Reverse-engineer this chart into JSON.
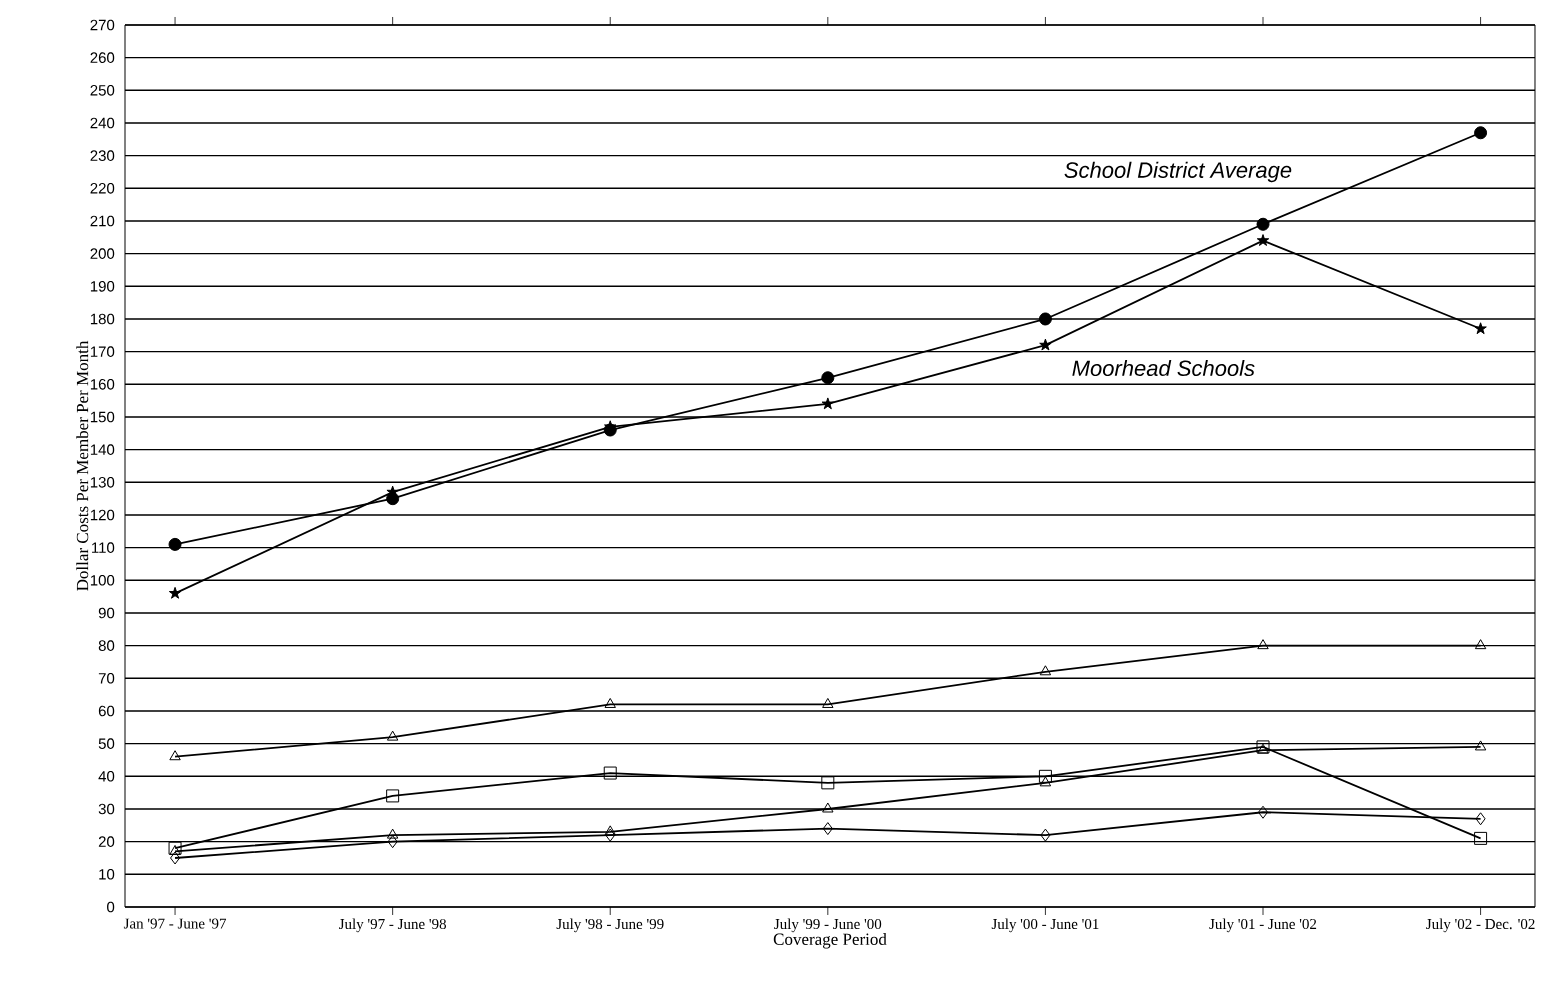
{
  "chart_data": {
    "type": "line",
    "xlabel": "Coverage Period",
    "ylabel": "Dollar Costs Per Member Per Month",
    "categories": [
      "Jan '97 - June '97",
      "July '97 - June '98",
      "July '98 - June '99",
      "July '99 - June '00",
      "July '00 - June '01",
      "July '01 - June '02",
      "July '02 - Dec. '02"
    ],
    "ylim": [
      0,
      270
    ],
    "yticks": [
      0,
      10,
      20,
      30,
      40,
      50,
      60,
      70,
      80,
      90,
      100,
      110,
      120,
      130,
      140,
      150,
      160,
      170,
      180,
      190,
      200,
      210,
      220,
      230,
      240,
      250,
      260,
      270
    ],
    "grid": "y",
    "line_style": "solid",
    "series": [
      {
        "name": "School District Average",
        "color": "#000000",
        "marker": "circle",
        "values": [
          111,
          125,
          146,
          162,
          180,
          209,
          237
        ]
      },
      {
        "name": "Moorhead Schools",
        "color": "#000000",
        "marker": "star",
        "values": [
          96,
          127,
          147,
          154,
          172,
          204,
          177
        ]
      },
      {
        "color": "#000000",
        "marker": "triangle",
        "values": [
          46,
          52,
          62,
          62,
          72,
          80,
          80
        ]
      },
      {
        "color": "#000000",
        "marker": "square",
        "values": [
          18,
          34,
          41,
          38,
          40,
          49,
          21
        ]
      },
      {
        "color": "#000000",
        "marker": "triangle",
        "values": [
          17,
          22,
          23,
          30,
          38,
          48,
          49
        ]
      },
      {
        "color": "#000000",
        "marker": "diamond",
        "values": [
          15,
          20,
          22,
          24,
          22,
          29,
          27
        ]
      }
    ]
  }
}
